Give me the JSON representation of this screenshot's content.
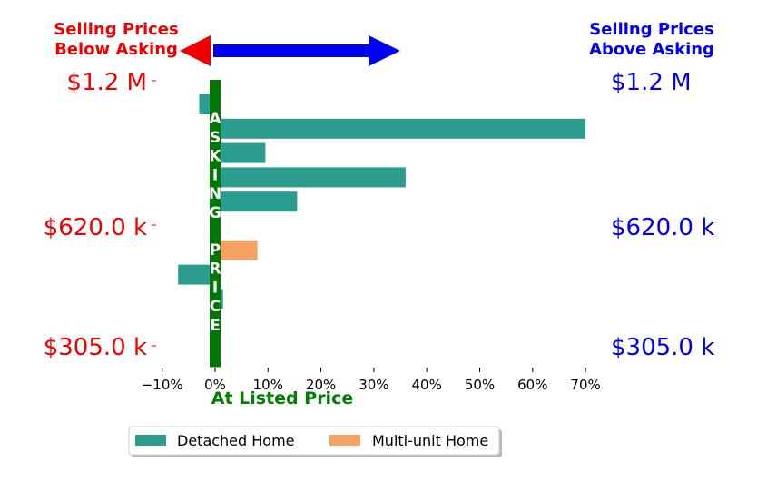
{
  "header": {
    "left_line1": "Selling Prices",
    "left_line2": "Below Asking",
    "right_line1": "Selling Prices",
    "right_line2": "Above Asking"
  },
  "price_labels": {
    "left": [
      "$1.2 M",
      "$620.0 k",
      "$305.0 k"
    ],
    "right": [
      "$1.2 M",
      "$620.0 k",
      "$305.0 k"
    ]
  },
  "asking_price_text": "ASKING PRICE",
  "colors": {
    "detached": "#2a9d8f",
    "multi_unit": "#f4a261",
    "left_text": "#ee0000",
    "right_text": "#0000ee",
    "asking_bar": "#007700",
    "listed_price_text": "#008000"
  },
  "chart_data": {
    "type": "bar",
    "orientation": "horizontal",
    "xlabel": "At Listed Price",
    "xlim": [
      -13,
      72
    ],
    "x_ticks": [
      -10,
      0,
      10,
      20,
      30,
      40,
      50,
      60,
      70
    ],
    "x_tick_labels": [
      "−10%",
      "0%",
      "10%",
      "20%",
      "30%",
      "40%",
      "50%",
      "60%",
      "70%"
    ],
    "legend": {
      "placement": "bottom-center",
      "entries": [
        "Detached Home",
        "Multi-unit Home"
      ]
    },
    "bars": [
      {
        "series": "Detached Home",
        "value": -3
      },
      {
        "series": "Detached Home",
        "value": 70
      },
      {
        "series": "Detached Home",
        "value": 9.5
      },
      {
        "series": "Detached Home",
        "value": 36
      },
      {
        "series": "Detached Home",
        "value": 15.5
      },
      {
        "series": "Detached Home",
        "value": 0.5
      },
      {
        "series": "Multi-unit Home",
        "value": 8
      },
      {
        "series": "Detached Home",
        "value": -7
      },
      {
        "series": "Detached Home",
        "value": 1.5
      },
      {
        "series": "Detached Home",
        "value": -1
      }
    ]
  }
}
